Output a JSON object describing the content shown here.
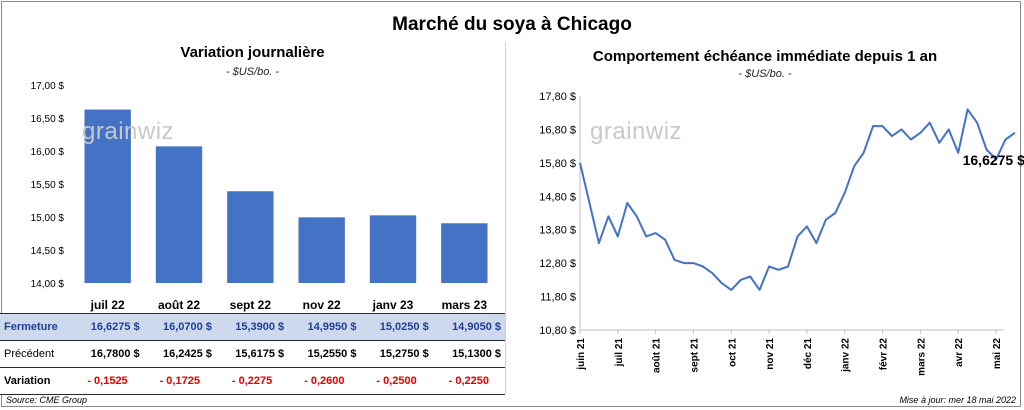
{
  "title": "Marché du soya à Chicago",
  "watermark": "grainwiz",
  "left_chart": {
    "title": "Variation  journalière",
    "unit": "- $US/bo. -"
  },
  "right_chart": {
    "title": "Comportement  échéance immédiate depuis 1 an",
    "unit": "- $US/bo. -",
    "last_value_label": "16,6275 $"
  },
  "table": {
    "row_labels": [
      "Fermeture",
      "Précédent",
      "Variation"
    ],
    "fermeture": [
      "16,6275  $",
      "16,0700  $",
      "15,3900  $",
      "14,9950  $",
      "15,0250  $",
      "14,9050  $"
    ],
    "precedent": [
      "16,7800  $",
      "16,2425  $",
      "15,6175  $",
      "15,2550  $",
      "15,2750  $",
      "15,1300  $"
    ],
    "variation": [
      "- 0,1525",
      "- 0,1725",
      "- 0,2275",
      "- 0,2600",
      "- 0,2500",
      "- 0,2250"
    ]
  },
  "footer": {
    "source": "Source: CME Group",
    "updated": "Mise à jour: mer 18 mai 2022"
  },
  "colors": {
    "bar": "#4472c4",
    "line": "#4472c4",
    "table_highlight": "#cfd9ee",
    "negative": "#e00000"
  },
  "chart_data": [
    {
      "type": "bar",
      "title": "Variation  journalière",
      "ylabel": "- $US/bo. -",
      "categories": [
        "juil 22",
        "août 22",
        "sept 22",
        "nov 22",
        "janv 23",
        "mars 23"
      ],
      "values": [
        16.6275,
        16.07,
        15.39,
        14.995,
        15.025,
        14.905
      ],
      "ylim": [
        14.0,
        17.0
      ],
      "yticks": [
        14.0,
        14.5,
        15.0,
        15.5,
        16.0,
        16.5,
        17.0
      ],
      "ytick_labels": [
        "14,00 $",
        "14,50 $",
        "15,00 $",
        "15,50 $",
        "16,00 $",
        "16,50 $",
        "17,00 $"
      ],
      "grid": false
    },
    {
      "type": "line",
      "title": "Comportement  échéance immédiate depuis 1 an",
      "ylabel": "- $US/bo. -",
      "ylim": [
        10.8,
        17.8
      ],
      "yticks": [
        10.8,
        11.8,
        12.8,
        13.8,
        14.8,
        15.8,
        16.8,
        17.8
      ],
      "ytick_labels": [
        "10,80 $",
        "11,80 $",
        "12,80 $",
        "13,80 $",
        "14,80 $",
        "15,80 $",
        "16,80 $",
        "17,80 $"
      ],
      "xtick_labels": [
        "juin 21",
        "juil 21",
        "août 21",
        "sept 21",
        "oct 21",
        "nov 21",
        "déc 21",
        "janv 22",
        "févr 22",
        "mars 22",
        "avr 22",
        "mai 22"
      ],
      "x": [
        0,
        0.25,
        0.5,
        0.75,
        1,
        1.25,
        1.5,
        1.75,
        2,
        2.25,
        2.5,
        2.75,
        3,
        3.25,
        3.5,
        3.75,
        4,
        4.25,
        4.5,
        4.75,
        5,
        5.25,
        5.5,
        5.75,
        6,
        6.25,
        6.5,
        6.75,
        7,
        7.25,
        7.5,
        7.75,
        8,
        8.25,
        8.5,
        8.75,
        9,
        9.25,
        9.5,
        9.75,
        10,
        10.25,
        10.5,
        10.75,
        11,
        11.25,
        11.5
      ],
      "y": [
        15.8,
        14.6,
        13.4,
        14.2,
        13.6,
        14.6,
        14.2,
        13.6,
        13.7,
        13.5,
        12.9,
        12.8,
        12.8,
        12.7,
        12.5,
        12.2,
        12.0,
        12.3,
        12.4,
        12.0,
        12.7,
        12.6,
        12.7,
        13.6,
        13.9,
        13.4,
        14.1,
        14.3,
        14.9,
        15.7,
        16.1,
        16.9,
        16.9,
        16.6,
        16.8,
        16.5,
        16.7,
        17.0,
        16.4,
        16.8,
        16.1,
        17.4,
        17.0,
        16.2,
        15.9,
        16.5,
        16.7
      ],
      "last_value": 16.6275,
      "grid": false
    }
  ]
}
